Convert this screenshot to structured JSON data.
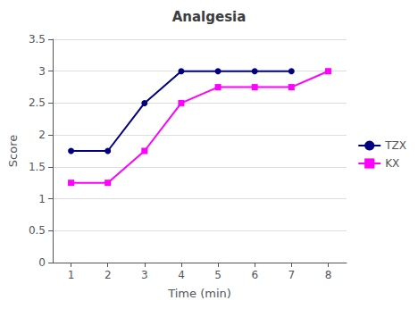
{
  "chart_data": {
    "type": "line",
    "title": "Analgesia",
    "xlabel": "Time (min)",
    "ylabel": "Score",
    "series": [
      {
        "name": "TZX",
        "color": "#000080",
        "marker": "circle",
        "x": [
          1,
          2,
          3,
          4,
          5,
          6,
          7
        ],
        "values": [
          1.75,
          1.75,
          2.5,
          3.0,
          3.0,
          3.0,
          3.0
        ]
      },
      {
        "name": "KX",
        "color": "#FF00FF",
        "marker": "square",
        "x": [
          1,
          2,
          3,
          4,
          5,
          6,
          7,
          8
        ],
        "values": [
          1.25,
          1.25,
          1.75,
          2.5,
          2.75,
          2.75,
          2.75,
          3.0
        ]
      }
    ],
    "xlim": [
      0.5,
      8.5
    ],
    "xticks": [
      1,
      2,
      3,
      4,
      5,
      6,
      7,
      8
    ],
    "ylim": [
      0,
      3.5
    ],
    "yticks": [
      0,
      0.5,
      1.0,
      1.5,
      2.0,
      2.5,
      3.0,
      3.5
    ],
    "grid": "y",
    "legend": "right"
  }
}
